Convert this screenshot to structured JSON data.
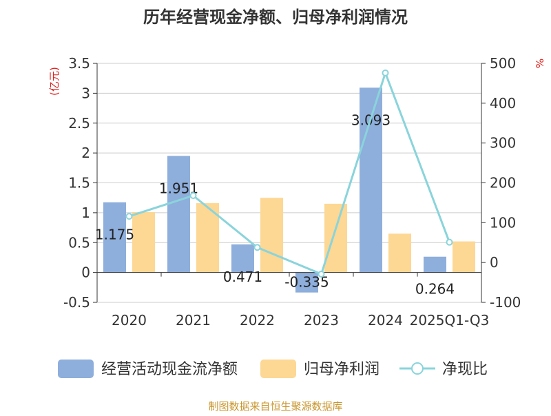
{
  "chart_data": {
    "type": "bar",
    "title": "历年经营现金净额、归母净利润情况",
    "categories": [
      "2020",
      "2021",
      "2022",
      "2023",
      "2024",
      "2025Q1-Q3"
    ],
    "series": [
      {
        "name": "经营活动现金流净额",
        "axis": "left",
        "kind": "bar",
        "color": "#8eaedc",
        "values": [
          1.175,
          1.951,
          0.471,
          -0.335,
          3.093,
          0.264
        ],
        "labels": [
          "1.175",
          "1.951",
          "0.471",
          "-0.335",
          "3.093",
          "0.264"
        ]
      },
      {
        "name": "归母净利润",
        "axis": "left",
        "kind": "bar",
        "color": "#fdd794",
        "values": [
          1.01,
          1.16,
          1.25,
          1.15,
          0.65,
          0.52
        ]
      },
      {
        "name": "净现比",
        "axis": "right",
        "kind": "line",
        "color": "#8ad4db",
        "values": [
          116,
          168,
          38,
          -29,
          476,
          51
        ]
      }
    ],
    "left_axis": {
      "unit": "(亿元)",
      "ylim": [
        -0.5,
        3.5
      ],
      "ticks": [
        3.5,
        3,
        2.5,
        2,
        1.5,
        1,
        0.5,
        0,
        -0.5
      ],
      "tick_labels": [
        "3.5",
        "3",
        "2.5",
        "2",
        "1.5",
        "1",
        "0.5",
        "0",
        "-0.5"
      ]
    },
    "right_axis": {
      "unit": "%",
      "ylim": [
        -100,
        500
      ],
      "ticks": [
        500,
        400,
        300,
        200,
        100,
        0,
        -100
      ],
      "tick_labels": [
        "500",
        "400",
        "300",
        "200",
        "100",
        "0",
        "-100"
      ]
    },
    "grid": true,
    "legend_position": "bottom",
    "colors": {
      "unit_text": "#e0201c",
      "footer_text": "#c8952c",
      "axis": "#333333",
      "grid": "#cccccc"
    }
  },
  "footer": {
    "source_text": "制图数据来自恒生聚源数据库"
  }
}
